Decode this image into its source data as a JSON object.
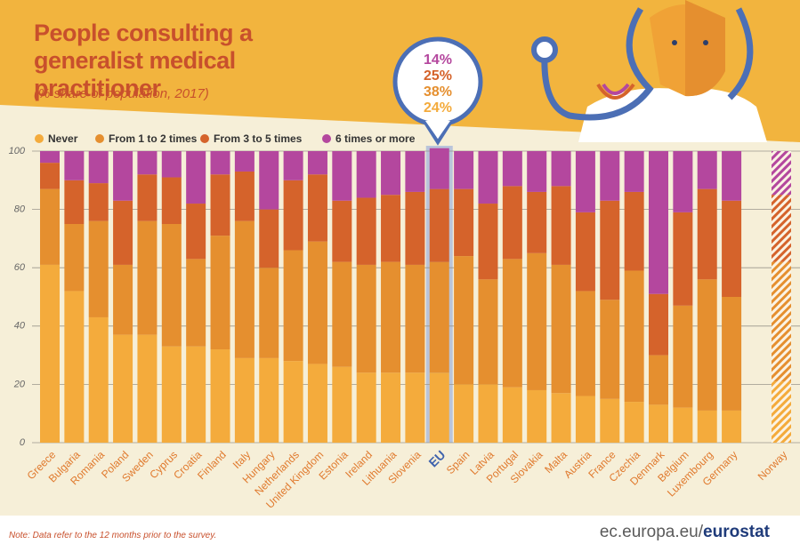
{
  "chart_data": {
    "type": "bar",
    "stacked": true,
    "title": "People consulting a generalist medical practitioner",
    "subtitle": "(% share of population, 2017)",
    "categories": [
      "Greece",
      "Bulgaria",
      "Romania",
      "Poland",
      "Sweden",
      "Cyprus",
      "Croatia",
      "Finland",
      "Italy",
      "Hungary",
      "Netherlands",
      "United Kingdom",
      "Estonia",
      "Ireland",
      "Lithuania",
      "Slovenia",
      "EU",
      "Spain",
      "Latvia",
      "Portugal",
      "Slovakia",
      "Malta",
      "Austria",
      "France",
      "Czechia",
      "Denmark",
      "Belgium",
      "Luxembourg",
      "Germany",
      "Norway"
    ],
    "highlight_category": "EU",
    "hatched_category": "Norway",
    "series": [
      {
        "name": "Never",
        "color": "#f4ab3c",
        "values": [
          61,
          52,
          43,
          37,
          37,
          33,
          33,
          32,
          29,
          29,
          28,
          27,
          26,
          24,
          24,
          24,
          24,
          20,
          20,
          19,
          18,
          17,
          16,
          15,
          14,
          13,
          12,
          11,
          11,
          21
        ],
        "value_labels": [
          null,
          null,
          null,
          null,
          null,
          null,
          null,
          null,
          null,
          null,
          null,
          null,
          null,
          null,
          null,
          null,
          "24%",
          null,
          null,
          null,
          null,
          null,
          null,
          null,
          null,
          null,
          null,
          null,
          null,
          null
        ]
      },
      {
        "name": "From 1 to 2 times",
        "color": "#e58f2f",
        "values": [
          26,
          23,
          33,
          24,
          39,
          42,
          30,
          39,
          47,
          31,
          38,
          42,
          36,
          37,
          38,
          37,
          38,
          44,
          36,
          44,
          47,
          44,
          36,
          34,
          45,
          17,
          35,
          45,
          39,
          41
        ],
        "value_labels": [
          null,
          null,
          null,
          null,
          null,
          null,
          null,
          null,
          null,
          null,
          null,
          null,
          null,
          null,
          null,
          null,
          "38%",
          null,
          null,
          null,
          null,
          null,
          null,
          null,
          null,
          null,
          null,
          null,
          null,
          null
        ]
      },
      {
        "name": "From 3 to 5 times",
        "color": "#d5632b",
        "values": [
          9,
          15,
          13,
          22,
          16,
          16,
          19,
          21,
          17,
          20,
          24,
          23,
          21,
          23,
          23,
          25,
          25,
          23,
          26,
          25,
          21,
          27,
          27,
          34,
          27,
          21,
          32,
          31,
          33,
          23
        ],
        "value_labels": [
          null,
          null,
          null,
          null,
          null,
          null,
          null,
          null,
          null,
          null,
          null,
          null,
          null,
          null,
          null,
          null,
          "25%",
          null,
          null,
          null,
          null,
          null,
          null,
          null,
          null,
          null,
          null,
          null,
          null,
          null
        ]
      },
      {
        "name": "6 times or more",
        "color": "#b4479e",
        "values": [
          4,
          10,
          11,
          17,
          8,
          9,
          18,
          8,
          7,
          20,
          10,
          8,
          17,
          16,
          15,
          14,
          14,
          13,
          18,
          12,
          14,
          12,
          21,
          17,
          14,
          49,
          21,
          13,
          17,
          15
        ],
        "value_labels": [
          null,
          null,
          null,
          null,
          null,
          null,
          null,
          null,
          null,
          null,
          null,
          null,
          null,
          null,
          null,
          null,
          "14%",
          null,
          null,
          null,
          null,
          null,
          null,
          null,
          null,
          null,
          null,
          null,
          null,
          null
        ]
      }
    ],
    "ylim": [
      0,
      100
    ],
    "yticks": [
      0,
      20,
      40,
      60,
      80,
      100
    ],
    "grid": true,
    "note": "Note: Data refer to the 12 months prior to the survey.",
    "source": "ec.europa.eu/",
    "source_brand": "eurostat"
  }
}
